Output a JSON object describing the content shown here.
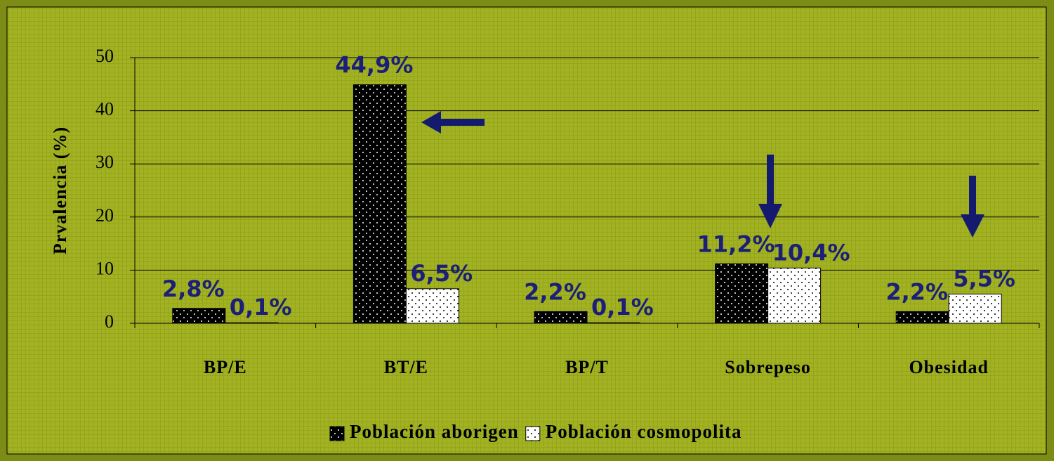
{
  "chart_data": {
    "type": "bar",
    "ylabel": "Prvalencia (%)",
    "categories": [
      "BP/E",
      "BT/E",
      "BP/T",
      "Sobrepeso",
      "Obesidad"
    ],
    "series": [
      {
        "name": "Población aborigen",
        "color": "#000000",
        "values": [
          2.8,
          44.9,
          2.2,
          11.2,
          2.2
        ],
        "value_labels": [
          "2,8%",
          "44,9%",
          "2,2%",
          "11,2%",
          "2,2%"
        ]
      },
      {
        "name": "Población cosmopolita",
        "color": "#ffffff",
        "values": [
          0.1,
          6.5,
          0.1,
          10.4,
          5.5
        ],
        "value_labels": [
          "0,1%",
          "6,5%",
          "0,1%",
          "10,4%",
          "5,5%"
        ]
      }
    ],
    "ylim": [
      0,
      50
    ],
    "yticks": [
      0,
      10,
      20,
      30,
      40,
      50
    ],
    "grid": true,
    "legend": "bottom"
  }
}
